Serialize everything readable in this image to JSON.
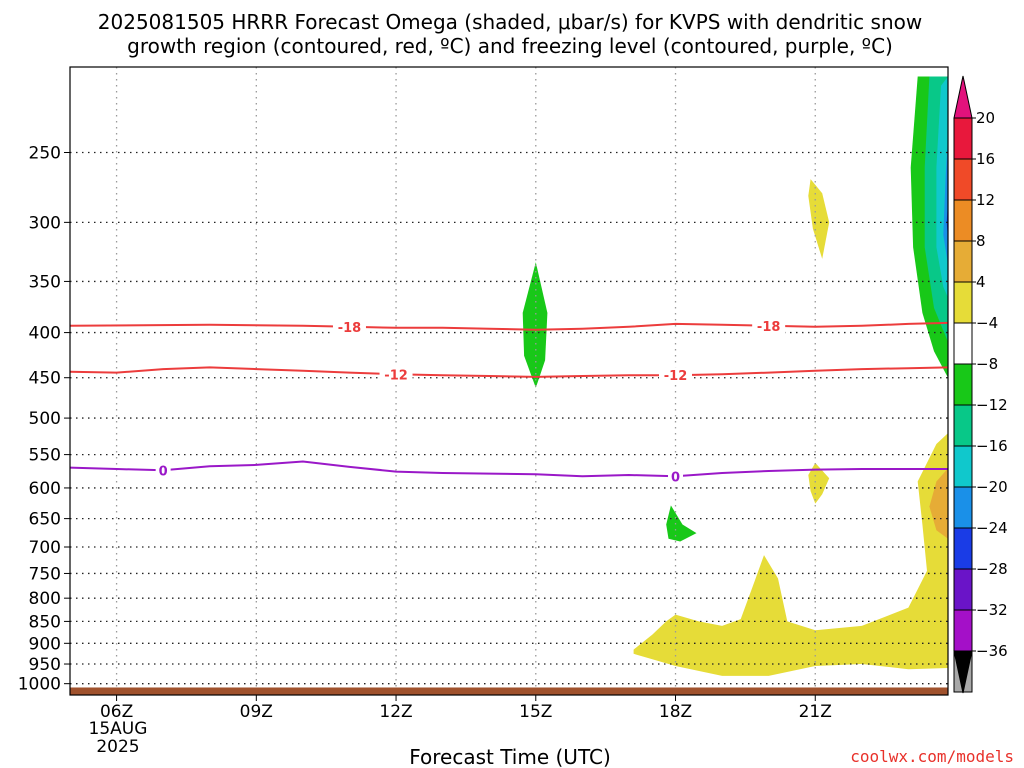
{
  "chart_data": {
    "type": "heatmap",
    "title_line1": "2025081505 HRRR Forecast Omega (shaded, μbar/s) for KVPS with dendritic snow",
    "title_line2": "growth region (contoured, red, ºC) and freezing level (contoured, purple, ºC)",
    "xlabel": "Forecast Time (UTC)",
    "x_ticks": [
      {
        "hour": 6,
        "label": "06Z"
      },
      {
        "hour": 9,
        "label": "09Z"
      },
      {
        "hour": 12,
        "label": "12Z"
      },
      {
        "hour": 15,
        "label": "15Z"
      },
      {
        "hour": 18,
        "label": "18Z"
      },
      {
        "hour": 21,
        "label": "21Z"
      }
    ],
    "x_date_label": [
      "15AUG",
      "2025"
    ],
    "xlim": [
      5.0,
      23.85
    ],
    "y_ticks": [
      250,
      300,
      350,
      400,
      450,
      500,
      550,
      600,
      650,
      700,
      750,
      800,
      850,
      900,
      950,
      1000
    ],
    "ylim": [
      1030,
      200
    ],
    "y_scale": "log-pressure",
    "grid": true,
    "colorbar": {
      "levels": [
        20,
        16,
        12,
        8,
        4,
        -4,
        -8,
        -12,
        -16,
        -20,
        -24,
        -28,
        -32,
        -36
      ],
      "labels": [
        "20",
        "16",
        "12",
        "8",
        "4",
        "−4",
        "−8",
        "−12",
        "−16",
        "−20",
        "−24",
        "−28",
        "−32",
        "−36"
      ],
      "colors": [
        "#e8183c",
        "#f04a28",
        "#ec8c24",
        "#e6ac36",
        "#e6dc38",
        "#ffffff",
        "#18c818",
        "#08c888",
        "#10c8cc",
        "#1a90e8",
        "#1a3ce6",
        "#6a14c8",
        "#a410c8",
        "#a8a8a8"
      ],
      "over_color": "#e2127c",
      "under_color": "#000000"
    },
    "series": [
      {
        "name": "-18",
        "color": "#ec3c3c",
        "x": [
          5.0,
          8.0,
          10.0,
          11.0,
          12.0,
          13.0,
          14.0,
          15.0,
          16.0,
          17.0,
          18.0,
          19.0,
          20.0,
          21.0,
          22.0,
          23.0,
          23.85
        ],
        "y": [
          393,
          392,
          393,
          394,
          395,
          395,
          396,
          397,
          396,
          394,
          391,
          392,
          393,
          394,
          393,
          391,
          390
        ],
        "labels": [
          {
            "x": 11.0,
            "text": "-18"
          },
          {
            "x": 20.0,
            "text": "-18"
          }
        ]
      },
      {
        "name": "-12",
        "color": "#ec3c3c",
        "x": [
          5.0,
          6.0,
          7.0,
          8.0,
          9.0,
          10.0,
          11.0,
          12.0,
          13.0,
          14.0,
          15.0,
          16.0,
          17.0,
          18.0,
          19.0,
          20.0,
          21.0,
          22.0,
          23.0,
          23.85
        ],
        "y": [
          443,
          444,
          440,
          438,
          440,
          442,
          444,
          446,
          447,
          448,
          449,
          448,
          447,
          447,
          446,
          444,
          442,
          440,
          439,
          438
        ],
        "labels": [
          {
            "x": 12.0,
            "text": "-12"
          },
          {
            "x": 18.0,
            "text": "-12"
          }
        ]
      },
      {
        "name": "0",
        "color": "#9a18c8",
        "x": [
          5.0,
          6.0,
          7.0,
          8.0,
          9.0,
          10.0,
          11.0,
          12.0,
          13.0,
          14.0,
          15.0,
          16.0,
          17.0,
          18.0,
          19.0,
          20.0,
          21.0,
          22.0,
          23.0,
          23.85
        ],
        "y": [
          569,
          571,
          573,
          567,
          565,
          560,
          568,
          575,
          577,
          578,
          579,
          582,
          580,
          582,
          577,
          574,
          572,
          571,
          571,
          571
        ],
        "labels": [
          {
            "x": 7.0,
            "text": "0"
          },
          {
            "x": 18.0,
            "text": "0"
          }
        ]
      }
    ],
    "omega_regions": [
      {
        "value": -8,
        "points": [
          [
            15.0,
            333
          ],
          [
            15.25,
            380
          ],
          [
            15.2,
            430
          ],
          [
            15.0,
            462
          ],
          [
            14.75,
            425
          ],
          [
            14.72,
            380
          ]
        ]
      },
      {
        "value": 4,
        "points": [
          [
            20.9,
            268
          ],
          [
            21.15,
            278
          ],
          [
            21.3,
            300
          ],
          [
            21.15,
            330
          ],
          [
            20.95,
            305
          ],
          [
            20.85,
            280
          ]
        ]
      },
      {
        "value": 4,
        "points": [
          [
            21.0,
            562
          ],
          [
            21.3,
            585
          ],
          [
            21.15,
            610
          ],
          [
            21.0,
            625
          ],
          [
            20.9,
            605
          ],
          [
            20.85,
            580
          ]
        ]
      },
      {
        "value": -8,
        "points": [
          [
            17.9,
            628
          ],
          [
            18.15,
            660
          ],
          [
            18.45,
            675
          ],
          [
            18.1,
            690
          ],
          [
            17.85,
            685
          ],
          [
            17.8,
            660
          ]
        ]
      },
      {
        "value": 4,
        "points": [
          [
            17.1,
            915
          ],
          [
            17.5,
            880
          ],
          [
            17.8,
            850
          ],
          [
            18.0,
            835
          ],
          [
            18.5,
            850
          ],
          [
            19.0,
            860
          ],
          [
            19.4,
            845
          ],
          [
            19.7,
            765
          ],
          [
            19.9,
            715
          ],
          [
            20.2,
            760
          ],
          [
            20.4,
            850
          ],
          [
            21.0,
            870
          ],
          [
            22.0,
            860
          ],
          [
            23.0,
            820
          ],
          [
            23.4,
            745
          ],
          [
            23.3,
            660
          ],
          [
            23.2,
            590
          ],
          [
            23.6,
            535
          ],
          [
            23.85,
            520
          ],
          [
            23.85,
            960
          ],
          [
            23.0,
            963
          ],
          [
            22.0,
            950
          ],
          [
            21.0,
            955
          ],
          [
            20.0,
            980
          ],
          [
            19.0,
            980
          ],
          [
            18.0,
            955
          ],
          [
            17.4,
            935
          ],
          [
            17.1,
            925
          ]
        ]
      },
      {
        "value": 8,
        "points": [
          [
            23.85,
            570
          ],
          [
            23.6,
            590
          ],
          [
            23.45,
            630
          ],
          [
            23.6,
            670
          ],
          [
            23.85,
            685
          ]
        ]
      },
      {
        "value": -8,
        "points": [
          [
            23.85,
            205
          ],
          [
            23.2,
            205
          ],
          [
            23.05,
            260
          ],
          [
            23.1,
            320
          ],
          [
            23.3,
            380
          ],
          [
            23.55,
            420
          ],
          [
            23.85,
            450
          ]
        ]
      },
      {
        "value": -12,
        "points": [
          [
            23.85,
            205
          ],
          [
            23.45,
            205
          ],
          [
            23.35,
            260
          ],
          [
            23.35,
            320
          ],
          [
            23.55,
            375
          ],
          [
            23.85,
            410
          ]
        ]
      },
      {
        "value": -16,
        "points": [
          [
            23.85,
            205
          ],
          [
            23.7,
            210
          ],
          [
            23.6,
            260
          ],
          [
            23.6,
            320
          ],
          [
            23.75,
            355
          ],
          [
            23.85,
            365
          ]
        ]
      },
      {
        "value": -20,
        "points": [
          [
            23.85,
            240
          ],
          [
            23.8,
            265
          ],
          [
            23.75,
            310
          ],
          [
            23.85,
            335
          ]
        ]
      },
      {
        "value": -24,
        "points": [
          [
            23.85,
            285
          ],
          [
            23.82,
            300
          ],
          [
            23.85,
            312
          ]
        ]
      }
    ],
    "surface": {
      "below_pressure": 1010,
      "color": "#a0522d"
    }
  },
  "credit": "coolwx.com/models"
}
